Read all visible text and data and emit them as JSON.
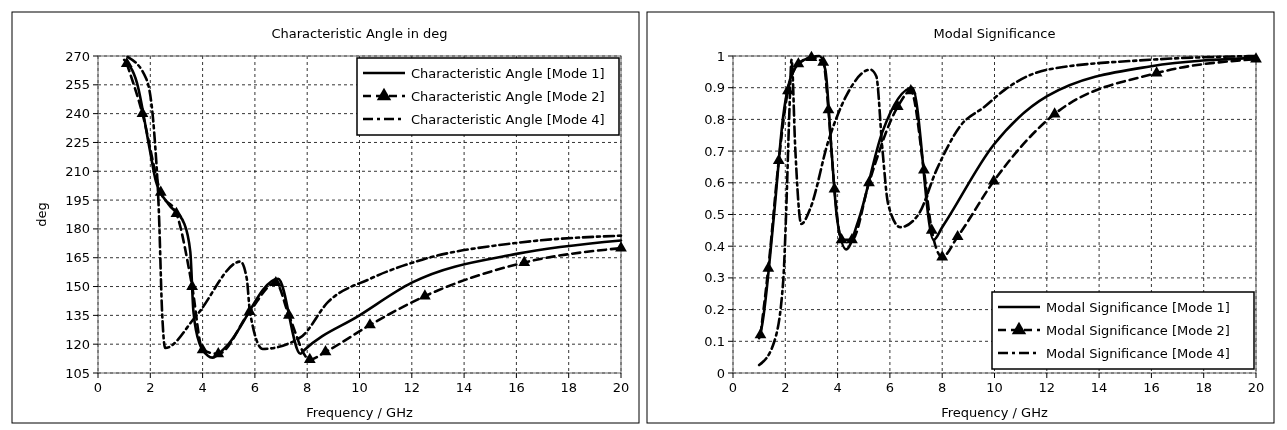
{
  "chart_data": [
    {
      "type": "line",
      "title": "Characteristic Angle in deg",
      "xlabel": "Frequency / GHz",
      "ylabel": "deg",
      "xlim": [
        0,
        20
      ],
      "xticks": [
        0,
        2,
        4,
        6,
        8,
        10,
        12,
        14,
        16,
        18,
        20
      ],
      "ylim": [
        105,
        270
      ],
      "yticks": [
        105,
        120,
        135,
        150,
        165,
        180,
        195,
        210,
        225,
        240,
        255,
        270
      ],
      "grid": true,
      "legend": "top right",
      "series": [
        {
          "name": "Characteristic Angle [Mode 1]",
          "color": "#000000",
          "line_style": "solid",
          "marker": "none",
          "x": [
            1,
            1.49,
            1.97,
            2.21,
            2.69,
            3.29,
            3.53,
            3.65,
            3.89,
            4.2,
            4.37,
            4.85,
            6.89,
            7.74,
            7.86,
            10,
            12,
            16,
            20
          ],
          "values": [
            268,
            256,
            222,
            205,
            193,
            183,
            168,
            137,
            120,
            114,
            113,
            118,
            154,
            115,
            116.6,
            135,
            152,
            167,
            174
          ]
        },
        {
          "name": "Characteristic Angle [Mode 2]",
          "color": "#000000",
          "line_style": "dashed",
          "marker": "triangle",
          "x": [
            1.1,
            1.7,
            2.4,
            3,
            3.6,
            4,
            4.6,
            5.8,
            6.8,
            7.3,
            8.1,
            8.7,
            10.4,
            12.5,
            16.3,
            20
          ],
          "values": [
            266,
            240,
            199,
            188,
            150,
            117,
            115,
            137,
            152,
            135,
            112,
            116,
            130,
            145,
            162.5,
            170
          ]
        },
        {
          "name": "Characteristic Angle [Mode 4]",
          "color": "#000000",
          "line_style": "dashdot",
          "marker": "none",
          "x": [
            1.13,
            1.85,
            2.15,
            2.33,
            2.45,
            2.57,
            3.77,
            5.45,
            5.69,
            5.81,
            6.3,
            7.74,
            8.8,
            10.4,
            12.4,
            16,
            20
          ],
          "values": [
            269.6,
            258,
            230,
            188,
            137,
            118,
            135,
            163,
            154,
            137,
            117.5,
            123.5,
            142,
            154,
            164,
            172.7,
            176.5
          ]
        }
      ]
    },
    {
      "type": "line",
      "title": "Modal Significance",
      "xlabel": "Frequency / GHz",
      "xlim": [
        0,
        20
      ],
      "xticks": [
        0,
        2,
        4,
        6,
        8,
        10,
        12,
        14,
        16,
        18,
        20
      ],
      "ylim": [
        0,
        1
      ],
      "yticks": [
        0,
        0.1,
        0.2,
        0.3,
        0.4,
        0.5,
        0.6,
        0.7,
        0.8,
        0.9,
        1
      ],
      "grid": true,
      "legend": "bottom right",
      "series": [
        {
          "name": "Modal Significance [Mode 1]",
          "color": "#000000",
          "line_style": "solid",
          "marker": "none",
          "x": [
            1,
            1.11,
            1.57,
            1.92,
            2.27,
            2.72,
            3.3,
            3.53,
            3.76,
            3.99,
            4.33,
            4.79,
            5.71,
            6.86,
            7.67,
            8,
            9.97,
            12.03,
            15.94,
            20
          ],
          "values": [
            0.11,
            0.15,
            0.5,
            0.81,
            0.946,
            0.988,
            1,
            0.957,
            0.71,
            0.48,
            0.39,
            0.48,
            0.76,
            0.9,
            0.42,
            0.46,
            0.72,
            0.874,
            0.967,
            0.994
          ]
        },
        {
          "name": "Modal Significance [Mode 2]",
          "color": "#000000",
          "line_style": "dashed",
          "marker": "triangle",
          "x": [
            1.05,
            1.35,
            1.75,
            2.1,
            2.5,
            3,
            3.45,
            3.65,
            3.88,
            4.15,
            4.55,
            5.2,
            6.3,
            6.8,
            7.3,
            7.6,
            8,
            8.59,
            9.97,
            12.3,
            16.2,
            20
          ],
          "values": [
            0.12,
            0.33,
            0.67,
            0.89,
            0.975,
            0.995,
            0.98,
            0.83,
            0.58,
            0.42,
            0.42,
            0.6,
            0.84,
            0.89,
            0.64,
            0.45,
            0.366,
            0.43,
            0.605,
            0.817,
            0.946,
            0.99
          ]
        },
        {
          "name": "Modal Significance [Mode 4]",
          "color": "#000000",
          "line_style": "dashdot",
          "marker": "none",
          "x": [
            1,
            1.57,
            1.92,
            2.03,
            2.15,
            2.24,
            2.38,
            2.61,
            2.96,
            3.64,
            4.33,
            5.25,
            5.48,
            5.71,
            5.94,
            6.4,
            7.09,
            7.78,
            8.7,
            9.62,
            10.4,
            12.03,
            15.94,
            20
          ],
          "values": [
            0.025,
            0.097,
            0.29,
            0.5,
            0.81,
            0.988,
            0.71,
            0.47,
            0.52,
            0.73,
            0.874,
            0.957,
            0.936,
            0.71,
            0.53,
            0.46,
            0.5,
            0.64,
            0.78,
            0.84,
            0.894,
            0.957,
            0.988,
            1
          ]
        }
      ]
    }
  ]
}
